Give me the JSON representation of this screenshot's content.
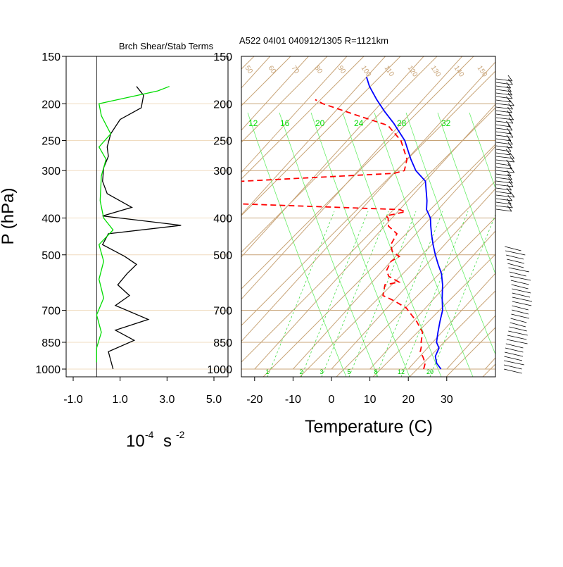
{
  "left_panel": {
    "title": "Brch Shear/Stab Terms",
    "x_ticks": [
      "-1.0",
      "1.0",
      "3.0",
      "5.0"
    ],
    "unit_base": "10",
    "unit_exp1": "-4",
    "unit_s": "s",
    "unit_exp2": "-2",
    "ylabel": "P (hPa)"
  },
  "skewt_panel": {
    "title": "A522 04I01 040912/1305 R=1121km",
    "xlabel": "Temperature (C)",
    "x_ticks": [
      "-20",
      "-10",
      "0",
      "10",
      "20",
      "30"
    ],
    "mixing_ratio_labels": [
      "1",
      "2",
      "3",
      "5",
      "8",
      "12",
      "20"
    ],
    "theta_labels": [
      "50",
      "60",
      "70",
      "80",
      "90",
      "100",
      "110",
      "120",
      "130",
      "140",
      "150"
    ],
    "theta_e_labels": [
      "12",
      "16",
      "20",
      "24",
      "28",
      "32"
    ]
  },
  "pressure_ticks": [
    "150",
    "200",
    "250",
    "300",
    "400",
    "500",
    "700",
    "850",
    "1000"
  ],
  "colors": {
    "temperature": "#0000ff",
    "dewpoint": "#ff0000",
    "shear_term": "#000000",
    "stability_term": "#00dd00",
    "background_lines": "#c8a478",
    "theta_e_lines": "#66ee66"
  },
  "chart_data": [
    {
      "type": "line",
      "title": "Brch Shear/Stab Terms",
      "xlabel": "10^-4 s^-2",
      "ylabel": "P (hPa)",
      "xlim": [
        -1.0,
        5.0
      ],
      "y_scale": "log (pressure, inverted)",
      "ylim": [
        1000,
        150
      ],
      "series": [
        {
          "color": "#000000",
          "points": [
            [
              1.7,
              180
            ],
            [
              2.0,
              190
            ],
            [
              1.9,
              205
            ],
            [
              1.0,
              220
            ],
            [
              0.6,
              240
            ],
            [
              0.45,
              260
            ],
            [
              0.5,
              275
            ],
            [
              0.3,
              295
            ],
            [
              0.25,
              320
            ],
            [
              0.45,
              345
            ],
            [
              1.5,
              375
            ],
            [
              0.25,
              395
            ],
            [
              3.6,
              418
            ],
            [
              0.5,
              440
            ],
            [
              0.25,
              470
            ],
            [
              1.2,
              505
            ],
            [
              1.7,
              530
            ],
            [
              1.3,
              560
            ],
            [
              0.9,
              600
            ],
            [
              1.4,
              640
            ],
            [
              0.8,
              680
            ],
            [
              2.2,
              740
            ],
            [
              0.8,
              790
            ],
            [
              1.6,
              840
            ],
            [
              0.5,
              900
            ],
            [
              0.7,
              1000
            ]
          ]
        },
        {
          "color": "#00dd00",
          "points": [
            [
              3.1,
              180
            ],
            [
              2.6,
              185
            ],
            [
              0.1,
              200
            ],
            [
              0.2,
              215
            ],
            [
              0.6,
              240
            ],
            [
              0.1,
              260
            ],
            [
              0.4,
              280
            ],
            [
              0.2,
              310
            ],
            [
              0.15,
              360
            ],
            [
              0.3,
              400
            ],
            [
              0.7,
              430
            ],
            [
              0.1,
              470
            ],
            [
              0.3,
              520
            ],
            [
              0.1,
              580
            ],
            [
              0.3,
              650
            ],
            [
              0.0,
              720
            ],
            [
              0.2,
              800
            ],
            [
              0.0,
              880
            ],
            [
              0.0,
              960
            ]
          ]
        }
      ]
    },
    {
      "type": "line",
      "title": "A522 04I01 040912/1305 R=1121km",
      "xlabel": "Temperature (C)",
      "ylabel": "P (hPa)",
      "diagram": "skew-T log-P",
      "xlim": [
        -22,
        43
      ],
      "ylim": [
        1000,
        150
      ],
      "series": [
        {
          "name": "Temperature",
          "color": "#0000ff",
          "points": [
            [
              28.5,
              1000
            ],
            [
              26,
              965
            ],
            [
              24,
              925
            ],
            [
              23,
              880
            ],
            [
              21,
              850
            ],
            [
              19,
              800
            ],
            [
              17,
              750
            ],
            [
              15,
              700
            ],
            [
              12,
              650
            ],
            [
              9,
              600
            ],
            [
              6,
              560
            ],
            [
              3,
              530
            ],
            [
              0,
              500
            ],
            [
              -3,
              470
            ],
            [
              -6,
              440
            ],
            [
              -8,
              420
            ],
            [
              -10,
              400
            ],
            [
              -13,
              380
            ],
            [
              -15,
              360
            ],
            [
              -20,
              320
            ],
            [
              -25,
              300
            ],
            [
              -29,
              280
            ],
            [
              -35,
              250
            ],
            [
              -42,
              225
            ],
            [
              -47,
              210
            ],
            [
              -52,
              195
            ],
            [
              -57,
              180
            ],
            [
              -60,
              170
            ]
          ]
        },
        {
          "name": "Dewpoint",
          "color": "#ff0000",
          "points": [
            [
              24,
              1000
            ],
            [
              23,
              965
            ],
            [
              21,
              930
            ],
            [
              19,
              900
            ],
            [
              18,
              870
            ],
            [
              17,
              850
            ],
            [
              15,
              800
            ],
            [
              11,
              750
            ],
            [
              7,
              710
            ],
            [
              5,
              690
            ],
            [
              0,
              660
            ],
            [
              -4,
              640
            ],
            [
              -5,
              620
            ],
            [
              -6,
              600
            ],
            [
              -3,
              590
            ],
            [
              -7,
              570
            ],
            [
              -9,
              550
            ],
            [
              -10,
              520
            ],
            [
              -9,
              505
            ],
            [
              -12,
              490
            ],
            [
              -14,
              470
            ],
            [
              -15,
              440
            ],
            [
              -19,
              420
            ],
            [
              -21,
              400
            ],
            [
              -22,
              395
            ],
            [
              -18,
              385
            ],
            [
              -20,
              380
            ],
            [
              -70,
              365
            ],
            [
              -80,
              325
            ],
            [
              -30,
              305
            ],
            [
              -28,
              300
            ],
            [
              -30,
              280
            ],
            [
              -36,
              250
            ],
            [
              -43,
              228
            ],
            [
              -53,
              215
            ],
            [
              -65,
              200
            ],
            [
              -68,
              195
            ]
          ]
        }
      ],
      "wind_barbs": "profile along right edge, 150–1000 hPa"
    }
  ]
}
